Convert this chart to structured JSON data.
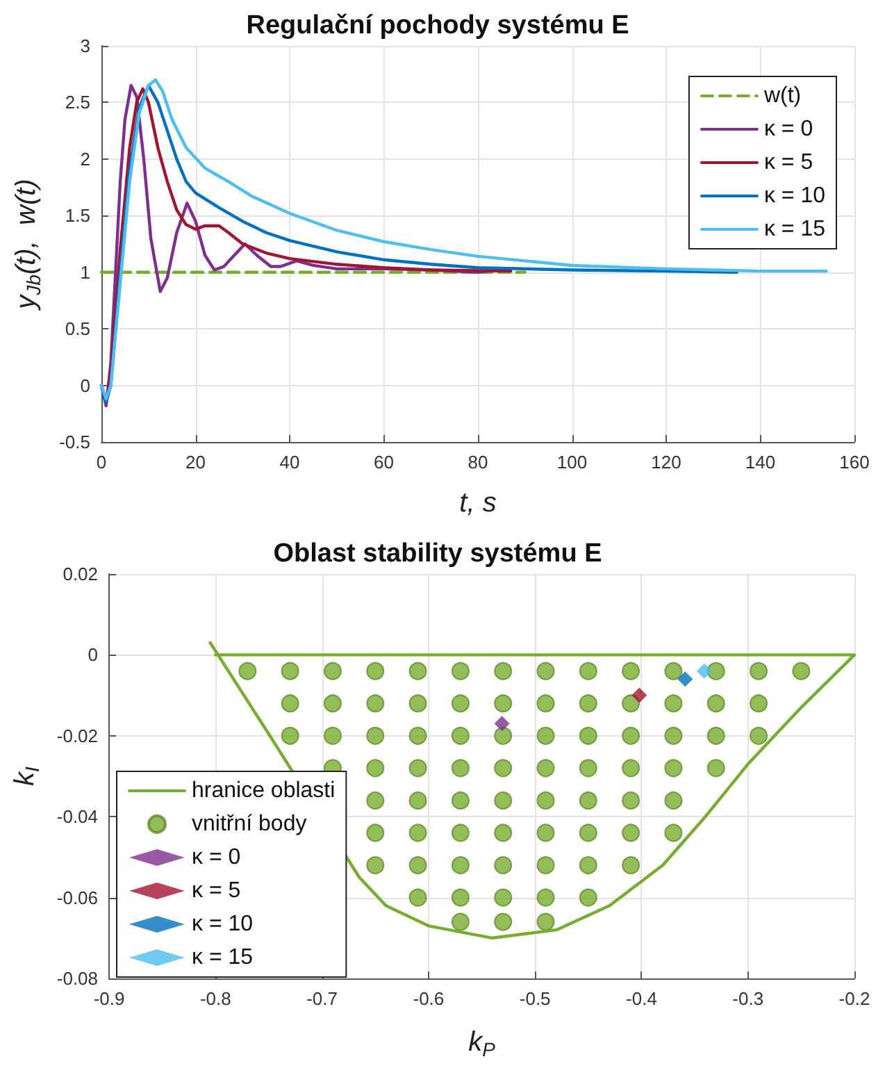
{
  "chart_data": [
    {
      "type": "line",
      "title": "Regulační pochody systému E",
      "xlabel": "t, s",
      "ylabel": "y$_{Jb}$(t),  w(t)",
      "xlim": [
        0,
        160
      ],
      "ylim": [
        -0.5,
        3
      ],
      "xticks": [
        0,
        20,
        40,
        60,
        80,
        100,
        120,
        140,
        160
      ],
      "yticks": [
        -0.5,
        0,
        0.5,
        1,
        1.5,
        2,
        2.5,
        3
      ],
      "grid": true,
      "legend": "top right",
      "series": [
        {
          "name": "w(t)",
          "color": "#77ac30",
          "line_style": "dashed",
          "x": [
            0,
            90
          ],
          "values": [
            1,
            1
          ]
        },
        {
          "name": "κ = 0",
          "color": "#7e2f8e",
          "x": [
            0,
            1,
            2,
            3,
            4,
            5,
            6.3,
            7.5,
            9,
            10.5,
            12.5,
            14,
            16,
            18.2,
            20,
            22,
            24,
            26,
            30.5,
            33,
            36,
            38,
            41.5,
            45,
            50,
            60,
            70,
            80,
            82
          ],
          "values": [
            0,
            -0.18,
            0.2,
            1.0,
            1.8,
            2.35,
            2.65,
            2.55,
            2.0,
            1.3,
            0.83,
            0.95,
            1.35,
            1.61,
            1.45,
            1.15,
            1.02,
            1.05,
            1.25,
            1.15,
            1.05,
            1.05,
            1.1,
            1.06,
            1.03,
            1.03,
            1.02,
            1.0,
            1.01
          ]
        },
        {
          "name": "κ = 5",
          "color": "#a2142f",
          "x": [
            0,
            1,
            2,
            4,
            6,
            7.5,
            8.8,
            10,
            12,
            14,
            16,
            18,
            20,
            22,
            25,
            27,
            30,
            35,
            40,
            50,
            60,
            70,
            87
          ],
          "values": [
            0,
            -0.15,
            0.1,
            1.2,
            2.1,
            2.5,
            2.62,
            2.5,
            2.1,
            1.8,
            1.55,
            1.42,
            1.38,
            1.41,
            1.41,
            1.35,
            1.25,
            1.17,
            1.12,
            1.07,
            1.04,
            1.02,
            1.01
          ]
        },
        {
          "name": "κ = 10",
          "color": "#0072bd",
          "x": [
            0,
            1,
            2,
            4,
            6,
            8,
            10,
            12,
            14,
            16,
            18,
            20,
            25,
            30,
            35,
            40,
            50,
            60,
            70,
            80,
            100,
            120,
            135
          ],
          "values": [
            0,
            -0.15,
            0.0,
            1.0,
            1.9,
            2.45,
            2.65,
            2.5,
            2.25,
            2.0,
            1.8,
            1.7,
            1.57,
            1.45,
            1.35,
            1.28,
            1.18,
            1.11,
            1.07,
            1.04,
            1.02,
            1.01,
            1.0
          ]
        },
        {
          "name": "κ = 15",
          "color": "#4dbeee",
          "x": [
            0,
            1,
            2,
            4,
            6,
            8,
            10,
            11.5,
            13,
            15,
            18,
            22,
            27,
            32,
            40,
            50,
            60,
            70,
            80,
            90,
            100,
            120,
            140,
            154
          ],
          "values": [
            0,
            -0.12,
            0.0,
            0.9,
            1.8,
            2.4,
            2.65,
            2.7,
            2.6,
            2.35,
            2.1,
            1.92,
            1.8,
            1.67,
            1.52,
            1.37,
            1.27,
            1.2,
            1.14,
            1.1,
            1.06,
            1.03,
            1.01,
            1.01
          ]
        }
      ]
    },
    {
      "type": "scatter",
      "title": "Oblast stability systému E",
      "xlabel": "k$_{P}$",
      "ylabel": "k$_{I}$",
      "xlim": [
        -0.9,
        -0.2
      ],
      "ylim": [
        -0.08,
        0.02
      ],
      "xticks": [
        -0.9,
        -0.8,
        -0.7,
        -0.6,
        -0.5,
        -0.4,
        -0.3,
        -0.2
      ],
      "yticks": [
        -0.08,
        -0.06,
        -0.04,
        -0.02,
        0,
        0.02
      ],
      "grid": true,
      "legend": "bottom left",
      "series": [
        {
          "name": "hranice oblasti",
          "type": "line",
          "color": "#77ac30",
          "x": [
            -0.805,
            -0.749,
            -0.665,
            -0.64,
            -0.6,
            -0.54,
            -0.48,
            -0.43,
            -0.38,
            -0.34,
            -0.3,
            -0.25,
            -0.2,
            -0.8
          ],
          "values": [
            0.003,
            -0.02,
            -0.055,
            -0.062,
            -0.067,
            -0.07,
            -0.068,
            -0.062,
            -0.052,
            -0.04,
            -0.027,
            -0.013,
            0,
            0
          ]
        },
        {
          "name": "vnitřní body",
          "marker": "circle",
          "color": "#77ac30",
          "x": [
            -0.77,
            -0.73,
            -0.69,
            -0.65,
            -0.61,
            -0.57,
            -0.53,
            -0.49,
            -0.45,
            -0.41,
            -0.37,
            -0.33,
            -0.29,
            -0.25,
            -0.73,
            -0.69,
            -0.65,
            -0.61,
            -0.57,
            -0.53,
            -0.49,
            -0.45,
            -0.41,
            -0.37,
            -0.33,
            -0.29,
            -0.73,
            -0.69,
            -0.65,
            -0.61,
            -0.57,
            -0.53,
            -0.49,
            -0.45,
            -0.41,
            -0.37,
            -0.33,
            -0.29,
            -0.69,
            -0.65,
            -0.61,
            -0.57,
            -0.53,
            -0.49,
            -0.45,
            -0.41,
            -0.37,
            -0.33,
            -0.65,
            -0.61,
            -0.57,
            -0.53,
            -0.49,
            -0.45,
            -0.41,
            -0.37,
            -0.65,
            -0.61,
            -0.57,
            -0.53,
            -0.49,
            -0.45,
            -0.41,
            -0.37,
            -0.65,
            -0.61,
            -0.57,
            -0.53,
            -0.49,
            -0.45,
            -0.41,
            -0.61,
            -0.57,
            -0.53,
            -0.49,
            -0.45,
            -0.57,
            -0.53,
            -0.49
          ],
          "values": [
            -0.004,
            -0.004,
            -0.004,
            -0.004,
            -0.004,
            -0.004,
            -0.004,
            -0.004,
            -0.004,
            -0.004,
            -0.004,
            -0.004,
            -0.004,
            -0.004,
            -0.012,
            -0.012,
            -0.012,
            -0.012,
            -0.012,
            -0.012,
            -0.012,
            -0.012,
            -0.012,
            -0.012,
            -0.012,
            -0.012,
            -0.02,
            -0.02,
            -0.02,
            -0.02,
            -0.02,
            -0.02,
            -0.02,
            -0.02,
            -0.02,
            -0.02,
            -0.02,
            -0.02,
            -0.028,
            -0.028,
            -0.028,
            -0.028,
            -0.028,
            -0.028,
            -0.028,
            -0.028,
            -0.028,
            -0.028,
            -0.036,
            -0.036,
            -0.036,
            -0.036,
            -0.036,
            -0.036,
            -0.036,
            -0.036,
            -0.044,
            -0.044,
            -0.044,
            -0.044,
            -0.044,
            -0.044,
            -0.044,
            -0.044,
            -0.052,
            -0.052,
            -0.052,
            -0.052,
            -0.052,
            -0.052,
            -0.052,
            -0.06,
            -0.06,
            -0.06,
            -0.06,
            -0.06,
            -0.066,
            -0.066,
            -0.066
          ]
        },
        {
          "name": "κ = 0",
          "marker": "diamond",
          "color": "#7e2f8e",
          "x": [
            -0.531
          ],
          "values": [
            -0.017
          ]
        },
        {
          "name": "κ = 5",
          "marker": "diamond",
          "color": "#a2142f",
          "x": [
            -0.402
          ],
          "values": [
            -0.01
          ]
        },
        {
          "name": "κ = 10",
          "marker": "diamond",
          "color": "#0072bd",
          "x": [
            -0.359
          ],
          "values": [
            -0.006
          ]
        },
        {
          "name": "κ = 15",
          "marker": "diamond",
          "color": "#4dbeee",
          "x": [
            -0.341
          ],
          "values": [
            -0.004
          ]
        }
      ]
    }
  ]
}
